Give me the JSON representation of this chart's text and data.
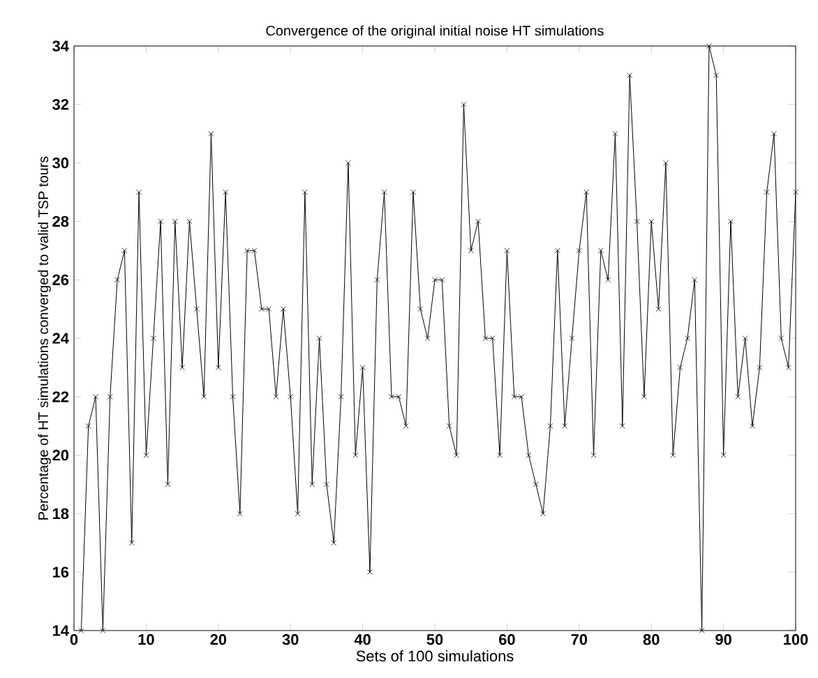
{
  "chart_data": {
    "type": "line",
    "title": "Convergence of the original initial noise HT simulations",
    "xlabel": "Sets of 100 simulations",
    "ylabel": "Percentage of HT simulations converged to valid TSP tours",
    "x": [
      1,
      2,
      3,
      4,
      5,
      6,
      7,
      8,
      9,
      10,
      11,
      12,
      13,
      14,
      15,
      16,
      17,
      18,
      19,
      20,
      21,
      22,
      23,
      24,
      25,
      26,
      27,
      28,
      29,
      30,
      31,
      32,
      33,
      34,
      35,
      36,
      37,
      38,
      39,
      40,
      41,
      42,
      43,
      44,
      45,
      46,
      47,
      48,
      49,
      50,
      51,
      52,
      53,
      54,
      55,
      56,
      57,
      58,
      59,
      60,
      61,
      62,
      63,
      64,
      65,
      66,
      67,
      68,
      69,
      70,
      71,
      72,
      73,
      74,
      75,
      76,
      77,
      78,
      79,
      80,
      81,
      82,
      83,
      84,
      85,
      86,
      87,
      88,
      89,
      90,
      91,
      92,
      93,
      94,
      95,
      96,
      97,
      98,
      99,
      100
    ],
    "series": [
      {
        "color": "#000000",
        "values": [
          14,
          21,
          22,
          14,
          22,
          26,
          27,
          17,
          29,
          20,
          24,
          28,
          19,
          28,
          23,
          28,
          25,
          22,
          31,
          23,
          29,
          22,
          18,
          27,
          27,
          25,
          25,
          22,
          25,
          22,
          18,
          29,
          19,
          24,
          19,
          17,
          22,
          30,
          20,
          23,
          16,
          26,
          29,
          22,
          22,
          21,
          29,
          25,
          24,
          26,
          26,
          21,
          20,
          32,
          27,
          28,
          24,
          24,
          20,
          27,
          22,
          22,
          20,
          19,
          18,
          21,
          27,
          21,
          24,
          27,
          29,
          20,
          27,
          26,
          31,
          21,
          33,
          28,
          22,
          28,
          25,
          30,
          20,
          23,
          24,
          26,
          14,
          34,
          33,
          20,
          28,
          22,
          24,
          21,
          23,
          29,
          31,
          24,
          23,
          29
        ]
      }
    ],
    "xlim": [
      0,
      100
    ],
    "ylim": [
      14,
      34
    ],
    "xticks": [
      0,
      10,
      20,
      30,
      40,
      50,
      60,
      70,
      80,
      90,
      100
    ],
    "yticks": [
      14,
      16,
      18,
      20,
      22,
      24,
      26,
      28,
      30,
      32,
      34
    ],
    "grid": false,
    "marker": "cross",
    "line_style": "solid"
  }
}
